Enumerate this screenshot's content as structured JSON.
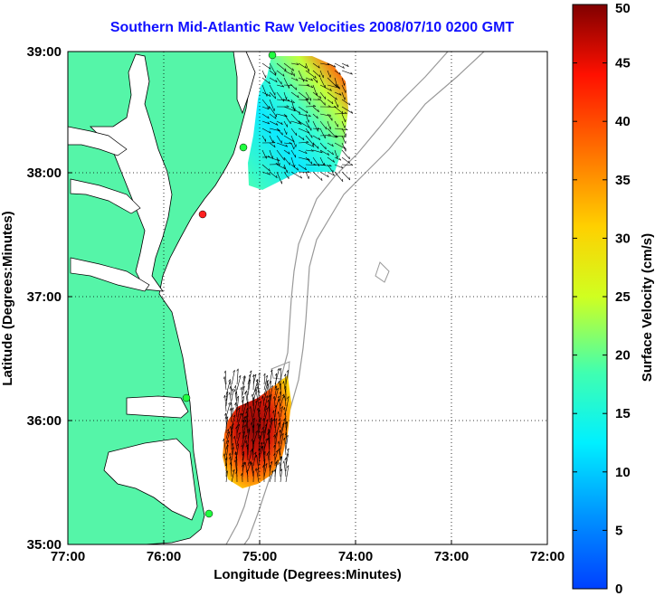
{
  "title": "Southern Mid-Atlantic Raw Velocities 2008/07/10 0200 GMT",
  "map": {
    "xlabel": "Longitude (Degrees:Minutes)",
    "ylabel": "Latitude (Degrees:Minutes)",
    "x_ticks": [
      "77:00",
      "76:00",
      "75:00",
      "74:00",
      "73:00",
      "72:00"
    ],
    "y_ticks": [
      "39:00",
      "38:00",
      "37:00",
      "36:00",
      "35:00"
    ],
    "land_color": "#55f5a8",
    "grid": "dotted"
  },
  "colorbar": {
    "label": "Surface Velocity (cm/s)",
    "ticks": [
      "50",
      "45",
      "40",
      "35",
      "30",
      "25",
      "20",
      "15",
      "10",
      "5",
      "0"
    ],
    "min": 0,
    "max": 50,
    "colormap": "jet"
  }
}
